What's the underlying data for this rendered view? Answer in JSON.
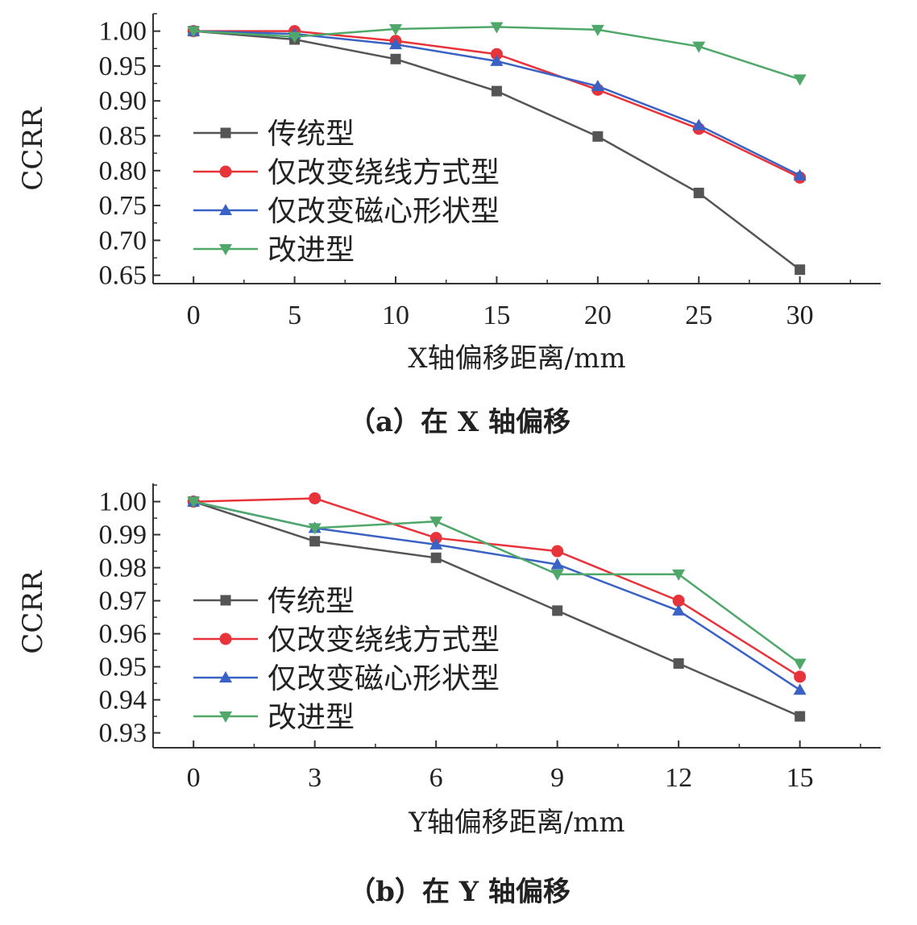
{
  "chart_data": [
    {
      "type": "line",
      "caption": "（a）在 X 轴偏移",
      "ylabel": "CCRR",
      "xlabel": "X轴偏移距离/mm",
      "x": [
        0,
        5,
        10,
        15,
        20,
        25,
        30
      ],
      "xticks": [
        "0",
        "5",
        "10",
        "15",
        "20",
        "25",
        "30"
      ],
      "yticks": [
        "0.65",
        "0.70",
        "0.75",
        "0.80",
        "0.85",
        "0.90",
        "0.95",
        "1.00"
      ],
      "xlim": [
        -2,
        34
      ],
      "ylim": [
        0.638,
        1.025
      ],
      "legend_position": "center-left",
      "series": [
        {
          "name": "传统型",
          "color": "#555555",
          "marker": "square",
          "values": [
            1.0,
            0.988,
            0.96,
            0.914,
            0.849,
            0.768,
            0.658
          ]
        },
        {
          "name": "仅改变绕线方式型",
          "color": "#e8333a",
          "marker": "circle",
          "values": [
            1.0,
            1.0,
            0.986,
            0.967,
            0.916,
            0.86,
            0.79
          ]
        },
        {
          "name": "仅改变磁心形状型",
          "color": "#3a62c4",
          "marker": "triangle-up",
          "values": [
            1.0,
            0.996,
            0.981,
            0.957,
            0.921,
            0.865,
            0.793
          ]
        },
        {
          "name": "改进型",
          "color": "#4fa86a",
          "marker": "triangle-down",
          "values": [
            1.0,
            0.992,
            1.003,
            1.006,
            1.002,
            0.978,
            0.931
          ]
        }
      ]
    },
    {
      "type": "line",
      "caption": "（b）在 Y 轴偏移",
      "ylabel": "CCRR",
      "xlabel": "Y轴偏移距离/mm",
      "x": [
        0,
        3,
        6,
        9,
        12,
        15
      ],
      "xticks": [
        "0",
        "3",
        "6",
        "9",
        "12",
        "15"
      ],
      "yticks": [
        "0.93",
        "0.94",
        "0.95",
        "0.96",
        "0.97",
        "0.98",
        "0.99",
        "1.00"
      ],
      "xlim": [
        -1,
        17
      ],
      "ylim": [
        0.9255,
        1.0055
      ],
      "legend_position": "center-left",
      "series": [
        {
          "name": "传统型",
          "color": "#555555",
          "marker": "square",
          "values": [
            1.0,
            0.988,
            0.983,
            0.967,
            0.951,
            0.935
          ]
        },
        {
          "name": "仅改变绕线方式型",
          "color": "#e8333a",
          "marker": "circle",
          "values": [
            1.0,
            1.001,
            0.989,
            0.985,
            0.97,
            0.947
          ]
        },
        {
          "name": "仅改变磁心形状型",
          "color": "#3a62c4",
          "marker": "triangle-up",
          "values": [
            1.0,
            0.992,
            0.987,
            0.981,
            0.967,
            0.943
          ]
        },
        {
          "name": "改进型",
          "color": "#4fa86a",
          "marker": "triangle-down",
          "values": [
            1.0,
            0.992,
            0.994,
            0.978,
            0.978,
            0.951
          ]
        }
      ]
    }
  ]
}
